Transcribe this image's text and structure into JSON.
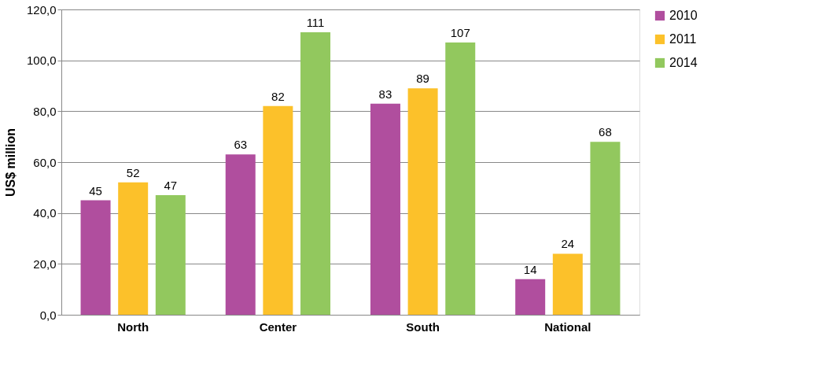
{
  "chart_data": {
    "type": "bar",
    "ylabel": "US$ million",
    "categories": [
      "North",
      "Center",
      "South",
      "National"
    ],
    "series": [
      {
        "name": "2010",
        "color": "#b04e9e",
        "values": [
          45,
          63,
          83,
          14
        ]
      },
      {
        "name": "2011",
        "color": "#fcc12a",
        "values": [
          52,
          82,
          89,
          24
        ]
      },
      {
        "name": "2014",
        "color": "#92c85e",
        "values": [
          47,
          111,
          107,
          68
        ]
      }
    ],
    "ylim": [
      0,
      120
    ],
    "yticks": [
      {
        "value": 0,
        "label": "0,0"
      },
      {
        "value": 20,
        "label": "20,0"
      },
      {
        "value": 40,
        "label": "40,0"
      },
      {
        "value": 60,
        "label": "60,0"
      },
      {
        "value": 80,
        "label": "80,0"
      },
      {
        "value": 100,
        "label": "100,0"
      },
      {
        "value": 120,
        "label": "120,0"
      }
    ],
    "grid": "y",
    "legend": "right",
    "data_labels": true
  }
}
